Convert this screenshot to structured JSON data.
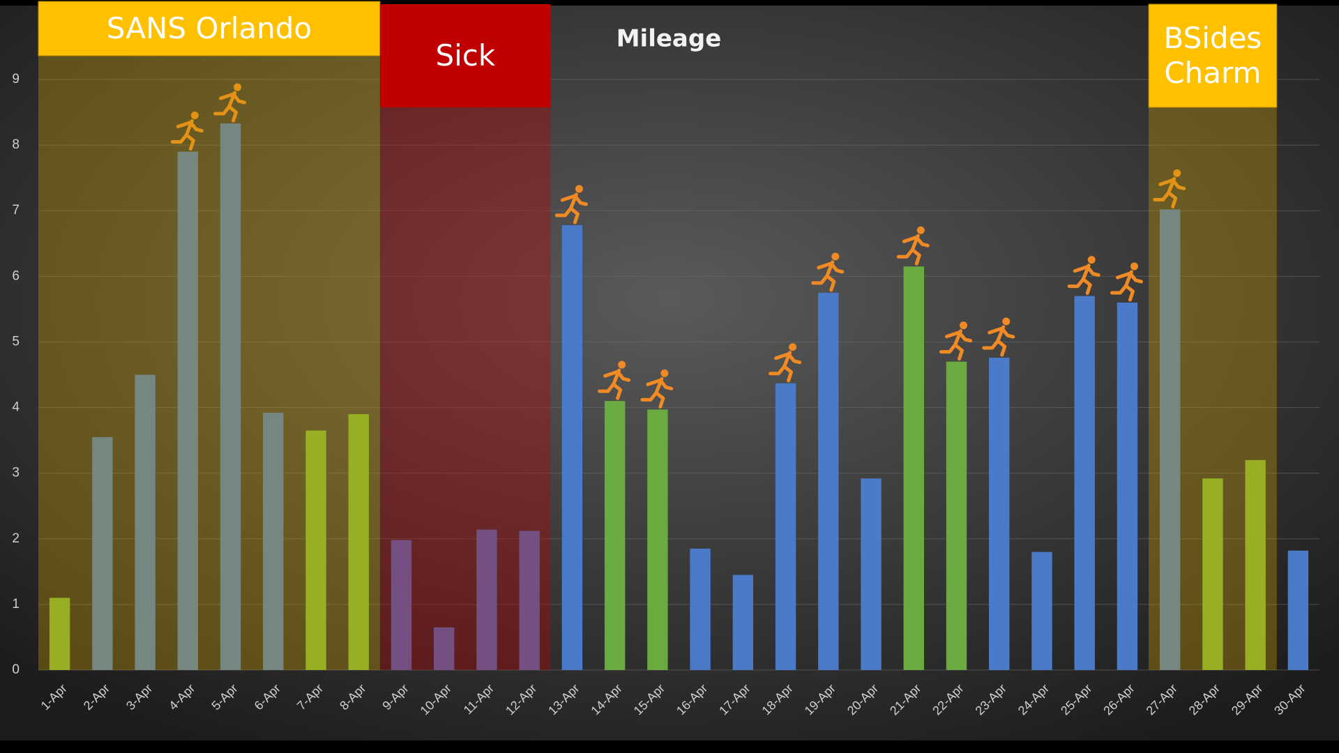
{
  "chart_data": {
    "type": "bar",
    "title": "Mileage",
    "categories": [
      "1-Apr",
      "2-Apr",
      "3-Apr",
      "4-Apr",
      "5-Apr",
      "6-Apr",
      "7-Apr",
      "8-Apr",
      "9-Apr",
      "10-Apr",
      "11-Apr",
      "12-Apr",
      "13-Apr",
      "14-Apr",
      "15-Apr",
      "16-Apr",
      "17-Apr",
      "18-Apr",
      "19-Apr",
      "20-Apr",
      "21-Apr",
      "22-Apr",
      "23-Apr",
      "24-Apr",
      "25-Apr",
      "26-Apr",
      "27-Apr",
      "28-Apr",
      "29-Apr",
      "30-Apr"
    ],
    "values": [
      1.1,
      3.55,
      4.5,
      7.9,
      8.33,
      3.92,
      3.65,
      3.9,
      1.98,
      0.65,
      2.14,
      2.12,
      6.78,
      4.1,
      3.97,
      1.85,
      1.45,
      4.37,
      5.75,
      2.92,
      6.15,
      4.7,
      4.76,
      1.8,
      5.7,
      5.6,
      7.02,
      2.92,
      3.2,
      1.82
    ],
    "colors": [
      "#7fb539",
      "#4a7ac8",
      "#4a7ac8",
      "#4a7ac8",
      "#4a7ac8",
      "#4a7ac8",
      "#7fb539",
      "#7fb539",
      "#4a7ac8",
      "#4a7ac8",
      "#4a7ac8",
      "#4a7ac8",
      "#4a7ac8",
      "#6aab3f",
      "#6aab3f",
      "#4a7ac8",
      "#4a7ac8",
      "#4a7ac8",
      "#4a7ac8",
      "#4a7ac8",
      "#6aab3f",
      "#6aab3f",
      "#4a7ac8",
      "#4a7ac8",
      "#4a7ac8",
      "#4a7ac8",
      "#4a7ac8",
      "#7fb539",
      "#7fb539",
      "#4a7ac8"
    ],
    "run_icon": [
      false,
      false,
      false,
      true,
      true,
      false,
      false,
      false,
      false,
      false,
      false,
      false,
      true,
      true,
      true,
      false,
      false,
      true,
      true,
      false,
      true,
      true,
      true,
      false,
      true,
      true,
      true,
      false,
      false,
      false
    ],
    "annotations": [
      {
        "text": "SANS Orlando",
        "from": "1-Apr",
        "to": "8-Apr",
        "color": "#ffc000",
        "shade": "#c9a000"
      },
      {
        "text": "Sick",
        "from": "9-Apr",
        "to": "12-Apr",
        "color": "#c00000",
        "shade": "#c00000"
      },
      {
        "text": "BSides Charm",
        "from": "27-Apr",
        "to": "29-Apr",
        "color": "#ffc000",
        "shade": "#c9a000"
      }
    ],
    "ylim": [
      0,
      9
    ],
    "yticks": [
      0,
      1,
      2,
      3,
      4,
      5,
      6,
      7,
      8,
      9
    ],
    "grid": true
  }
}
